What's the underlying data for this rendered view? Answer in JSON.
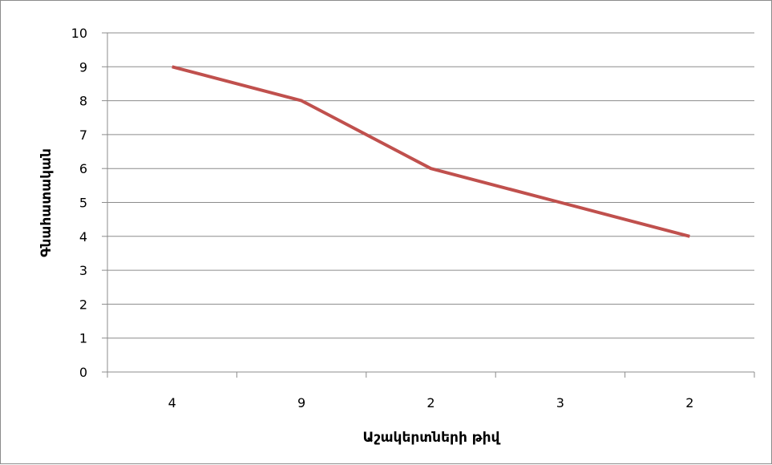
{
  "chart_data": {
    "type": "line",
    "title": "",
    "xlabel": "Աշակերտների թիվ",
    "ylabel": "Գնահատական",
    "categories": [
      "4",
      "9",
      "2",
      "3",
      "2"
    ],
    "series": [
      {
        "values": [
          9,
          8,
          6,
          5,
          4
        ],
        "color": "#C0504D"
      }
    ],
    "ylim": [
      0,
      10
    ],
    "yticks": [
      "0",
      "1",
      "2",
      "3",
      "4",
      "5",
      "6",
      "7",
      "8",
      "9",
      "10"
    ],
    "grid": "horizontal",
    "legend": "none"
  }
}
